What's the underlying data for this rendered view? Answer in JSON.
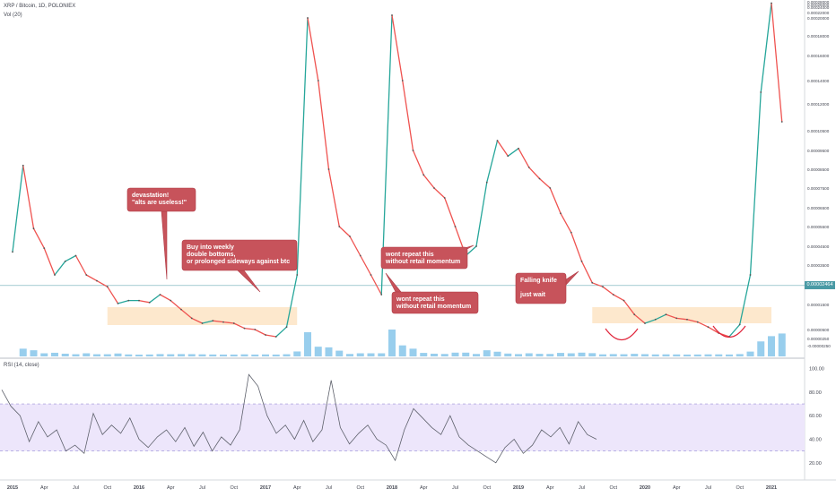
{
  "header": {
    "symbol_line": "XRP / Bitcoin, 1D, POLONIEX",
    "volume_line": "Vol (20)",
    "rsi_line": "RSI (14, close)"
  },
  "price_tag": "0.00002464",
  "colors": {
    "up": "#26a69a",
    "down": "#ef5350",
    "volume": "#7ec2e8",
    "callout_fill": "#c7535b",
    "callout_stroke": "#b03a45",
    "zone_fill": "#fde6c8",
    "rsi_band": "#ede6fb",
    "rsi_line": "#5d606b",
    "arc": "#e0243a",
    "hline": "#4a9aa5",
    "axis_text": "#434651"
  },
  "callouts": [
    {
      "id": "devastation",
      "lines": [
        "devastation!",
        "\"alts are useless!\""
      ]
    },
    {
      "id": "buy-weekly",
      "lines": [
        "Buy into weekly",
        "double bottoms,",
        "or prolonged sideways against btc"
      ]
    },
    {
      "id": "wont-repeat-1",
      "lines": [
        "wont repeat this",
        "without retail momentum"
      ]
    },
    {
      "id": "wont-repeat-2",
      "lines": [
        "wont repeat this",
        "without retail momentum"
      ]
    },
    {
      "id": "falling-knife",
      "lines": [
        "Falling knife",
        "",
        "just wait"
      ]
    }
  ],
  "chart_data": [
    {
      "type": "line",
      "title": "XRP / Bitcoin, 1D, POLONIEX",
      "x_ticks": [
        "2015",
        "Apr",
        "Jul",
        "Oct",
        "2016",
        "Apr",
        "Jul",
        "Oct",
        "2017",
        "Apr",
        "Jul",
        "Oct",
        "2018",
        "Apr",
        "Jul",
        "Oct",
        "2019",
        "Apr",
        "Jul",
        "Oct",
        "2020",
        "Apr",
        "Jul",
        "Oct",
        "2021"
      ],
      "y_ticks": [
        "0.00028000",
        "0.00026000",
        "0.00024000",
        "0.00022000",
        "0.00020000",
        "0.00018000",
        "0.00016000",
        "0.00014000",
        "0.00012000",
        "0.00010500",
        "0.00009500",
        "0.00008500",
        "0.00007500",
        "0.00006500",
        "0.00005500",
        "0.00004500",
        "0.00003500",
        "0.00002500",
        "0.00001500",
        "0.00000500",
        "0.00000250",
        "-0.00000250"
      ],
      "current_price": 2.464e-05,
      "series": [
        {
          "x": [
            "2015-01",
            "2015-02",
            "2015-03",
            "2015-04",
            "2015-05",
            "2015-06",
            "2015-07",
            "2015-08",
            "2015-09",
            "2015-10",
            "2015-11",
            "2015-12",
            "2016-01",
            "2016-02",
            "2016-03",
            "2016-04",
            "2016-05",
            "2016-06",
            "2016-07",
            "2016-08",
            "2016-09",
            "2016-10",
            "2016-11",
            "2016-12",
            "2017-01",
            "2017-02",
            "2017-03",
            "2017-04",
            "2017-05",
            "2017-06",
            "2017-07",
            "2017-08",
            "2017-09",
            "2017-10",
            "2017-11",
            "2017-12",
            "2018-01",
            "2018-02",
            "2018-03",
            "2018-04",
            "2018-05",
            "2018-06",
            "2018-07",
            "2018-08",
            "2018-09",
            "2018-10",
            "2018-11",
            "2018-12",
            "2019-01",
            "2019-02",
            "2019-03",
            "2019-04",
            "2019-05",
            "2019-06",
            "2019-07",
            "2019-08",
            "2019-09",
            "2019-10",
            "2019-11",
            "2019-12",
            "2020-01",
            "2020-02",
            "2020-03",
            "2020-04",
            "2020-05",
            "2020-06",
            "2020-07",
            "2020-08",
            "2020-09",
            "2020-10",
            "2020-11",
            "2020-12",
            "2021-01",
            "2021-02"
          ],
          "y": [
            4.2e-05,
            8.7e-05,
            5.4e-05,
            4.4e-05,
            3e-05,
            3.7e-05,
            4e-05,
            3e-05,
            2.7e-05,
            2.4e-05,
            1.55e-05,
            1.7e-05,
            1.7e-05,
            1.6e-05,
            2e-05,
            1.7e-05,
            1.3e-05,
            9.5e-06,
            7.5e-06,
            8.5e-06,
            8e-06,
            7.5e-06,
            5.5e-06,
            5e-06,
            3.5e-06,
            3e-06,
            6e-06,
            3e-05,
            0.0002,
            0.00014,
            8.5e-05,
            5.5e-05,
            5e-05,
            4e-05,
            3e-05,
            2e-05,
            0.00021,
            0.00014,
            9.5e-05,
            8.2e-05,
            7.5e-05,
            7e-05,
            5.5e-05,
            4e-05,
            4.5e-05,
            7.8e-05,
            0.0001,
            9.2e-05,
            9.6e-05,
            8.6e-05,
            8e-05,
            7.5e-05,
            6.2e-05,
            5.2e-05,
            3.7e-05,
            2.6e-05,
            2.4e-05,
            2e-05,
            1.7e-05,
            1.1e-05,
            7.5e-06,
            9e-06,
            1.1e-05,
            9.5e-06,
            9e-06,
            8e-06,
            6e-06,
            4e-06,
            3e-06,
            7e-06,
            3e-05,
            0.00013,
            0.00027,
            0.00011
          ]
        }
      ]
    },
    {
      "type": "line",
      "title": "RSI (14, close)",
      "y_ticks": [
        "100.00",
        "80.00",
        "60.00",
        "40.00",
        "20.00"
      ],
      "band": [
        30,
        70
      ],
      "series": [
        {
          "values": [
            82,
            68,
            60,
            38,
            55,
            42,
            48,
            30,
            35,
            28,
            62,
            44,
            52,
            45,
            58,
            40,
            33,
            42,
            48,
            38,
            50,
            34,
            46,
            30,
            42,
            35,
            48,
            95,
            85,
            60,
            45,
            52,
            40,
            56,
            38,
            48,
            90,
            50,
            36,
            45,
            52,
            40,
            35,
            22,
            48,
            66,
            58,
            50,
            44,
            60,
            42,
            35,
            30,
            25,
            20,
            33,
            40,
            28,
            35,
            48,
            42,
            50,
            36,
            55,
            44,
            40
          ]
        }
      ]
    }
  ]
}
